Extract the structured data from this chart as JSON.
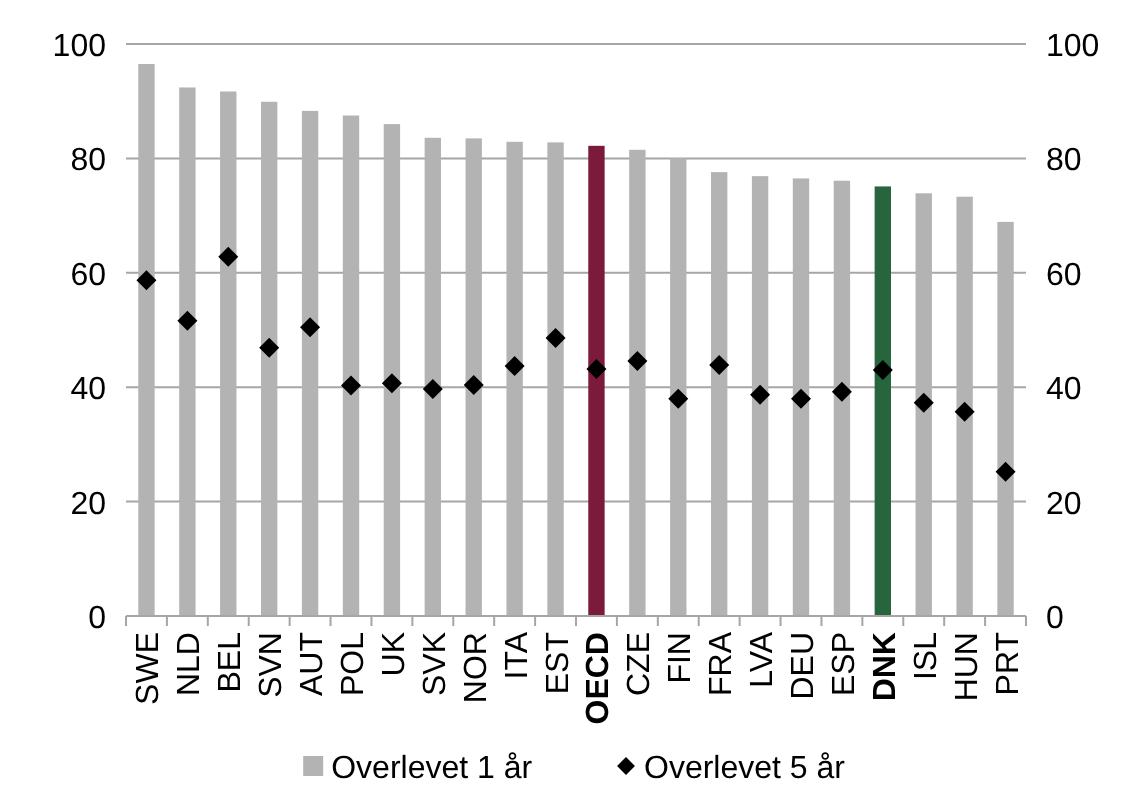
{
  "chart_data": {
    "type": "bar",
    "categories": [
      "SWE",
      "NLD",
      "BEL",
      "SVN",
      "AUT",
      "POL",
      "UK",
      "SVK",
      "NOR",
      "ITA",
      "EST",
      "OECD",
      "CZE",
      "FIN",
      "FRA",
      "LVA",
      "DEU",
      "ESP",
      "DNK",
      "ISL",
      "HUN",
      "PRT"
    ],
    "series": [
      {
        "name": "Overlevet 1 år",
        "color": "#b3b3b3",
        "colors": [
          "#b3b3b3",
          "#b3b3b3",
          "#b3b3b3",
          "#b3b3b3",
          "#b3b3b3",
          "#b3b3b3",
          "#b3b3b3",
          "#b3b3b3",
          "#b3b3b3",
          "#b3b3b3",
          "#b3b3b3",
          "#7b1a3b",
          "#b3b3b3",
          "#b3b3b3",
          "#b3b3b3",
          "#b3b3b3",
          "#b3b3b3",
          "#b3b3b3",
          "#27663d",
          "#b3b3b3",
          "#b3b3b3",
          "#b3b3b3"
        ],
        "values": [
          96.5,
          92.4,
          91.7,
          89.9,
          88.3,
          87.5,
          86,
          83.6,
          83.5,
          82.9,
          82.8,
          82.2,
          81.5,
          80,
          77.6,
          76.9,
          76.5,
          76.1,
          75.1,
          73.9,
          73.3,
          68.9
        ]
      },
      {
        "name": "Overlevet 5 år",
        "type": "scatter",
        "marker": "diamond",
        "color": "#000000",
        "values": [
          58.7,
          51.6,
          62.8,
          46.9,
          50.5,
          40.3,
          40.7,
          39.7,
          40.4,
          43.7,
          48.6,
          43.2,
          44.6,
          38,
          43.9,
          38.7,
          38,
          39.2,
          43,
          37.3,
          35.7,
          25.2
        ]
      }
    ],
    "ylim": [
      0,
      100
    ],
    "yticks": [
      0,
      20,
      40,
      60,
      80,
      100
    ],
    "y2lim": [
      0,
      100
    ],
    "y2ticks": [
      0,
      20,
      40,
      60,
      80,
      100
    ],
    "grid": "y",
    "legend": "bottom"
  }
}
